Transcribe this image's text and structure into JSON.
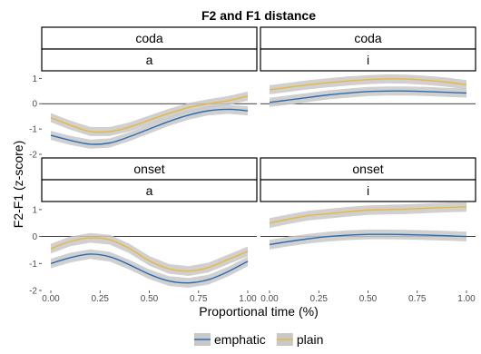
{
  "chart_data": {
    "type": "line",
    "title": "F2 and F1 distance",
    "xlabel": "Proportional time (%)",
    "ylabel": "F2-F1 (z-score)",
    "xlim": [
      0,
      1
    ],
    "ylim": [
      -2,
      1.3
    ],
    "x_ticks": [
      0,
      0.25,
      0.5,
      0.75,
      1
    ],
    "x_tick_labels": [
      "0.00",
      "0.25",
      "0.50",
      "0.75",
      "1.00"
    ],
    "y_ticks": [
      -2,
      -1,
      0,
      1
    ],
    "y_tick_labels": [
      "-2",
      "-1",
      "0",
      "1"
    ],
    "reference_line": 0,
    "grid": false,
    "legend": {
      "position": "bottom",
      "entries": [
        {
          "name": "emphatic",
          "color": "#2b6cb0"
        },
        {
          "name": "plain",
          "color": "#e8b83a"
        }
      ]
    },
    "ribbon_color": "#c8c8c8",
    "x": [
      0,
      0.1,
      0.2,
      0.3,
      0.4,
      0.5,
      0.6,
      0.7,
      0.8,
      0.9,
      1.0
    ],
    "panels": [
      {
        "strip_top": "coda",
        "strip_bottom": "a",
        "series": [
          {
            "name": "emphatic",
            "values": [
              -1.25,
              -1.45,
              -1.6,
              -1.55,
              -1.3,
              -1.0,
              -0.7,
              -0.45,
              -0.28,
              -0.22,
              -0.28
            ]
          },
          {
            "name": "plain",
            "values": [
              -0.55,
              -0.85,
              -1.1,
              -1.1,
              -0.92,
              -0.65,
              -0.38,
              -0.15,
              0.0,
              0.12,
              0.3
            ]
          }
        ]
      },
      {
        "strip_top": "coda",
        "strip_bottom": "i",
        "series": [
          {
            "name": "emphatic",
            "values": [
              0.05,
              0.15,
              0.25,
              0.35,
              0.42,
              0.48,
              0.5,
              0.5,
              0.48,
              0.45,
              0.42
            ]
          },
          {
            "name": "plain",
            "values": [
              0.55,
              0.65,
              0.75,
              0.83,
              0.9,
              0.95,
              0.98,
              0.97,
              0.92,
              0.85,
              0.75
            ]
          }
        ]
      },
      {
        "strip_top": "onset",
        "strip_bottom": "a",
        "series": [
          {
            "name": "emphatic",
            "values": [
              -1.0,
              -0.78,
              -0.65,
              -0.75,
              -1.05,
              -1.4,
              -1.65,
              -1.72,
              -1.6,
              -1.3,
              -0.92
            ]
          },
          {
            "name": "plain",
            "values": [
              -0.45,
              -0.18,
              -0.05,
              -0.12,
              -0.45,
              -0.9,
              -1.2,
              -1.28,
              -1.15,
              -0.85,
              -0.55
            ]
          }
        ]
      },
      {
        "strip_top": "onset",
        "strip_bottom": "i",
        "series": [
          {
            "name": "emphatic",
            "values": [
              -0.3,
              -0.18,
              -0.08,
              0.0,
              0.05,
              0.08,
              0.08,
              0.07,
              0.05,
              0.03,
              0.0
            ]
          },
          {
            "name": "plain",
            "values": [
              0.5,
              0.65,
              0.78,
              0.85,
              0.92,
              0.98,
              1.0,
              1.02,
              1.05,
              1.08,
              1.1
            ]
          }
        ]
      }
    ]
  }
}
